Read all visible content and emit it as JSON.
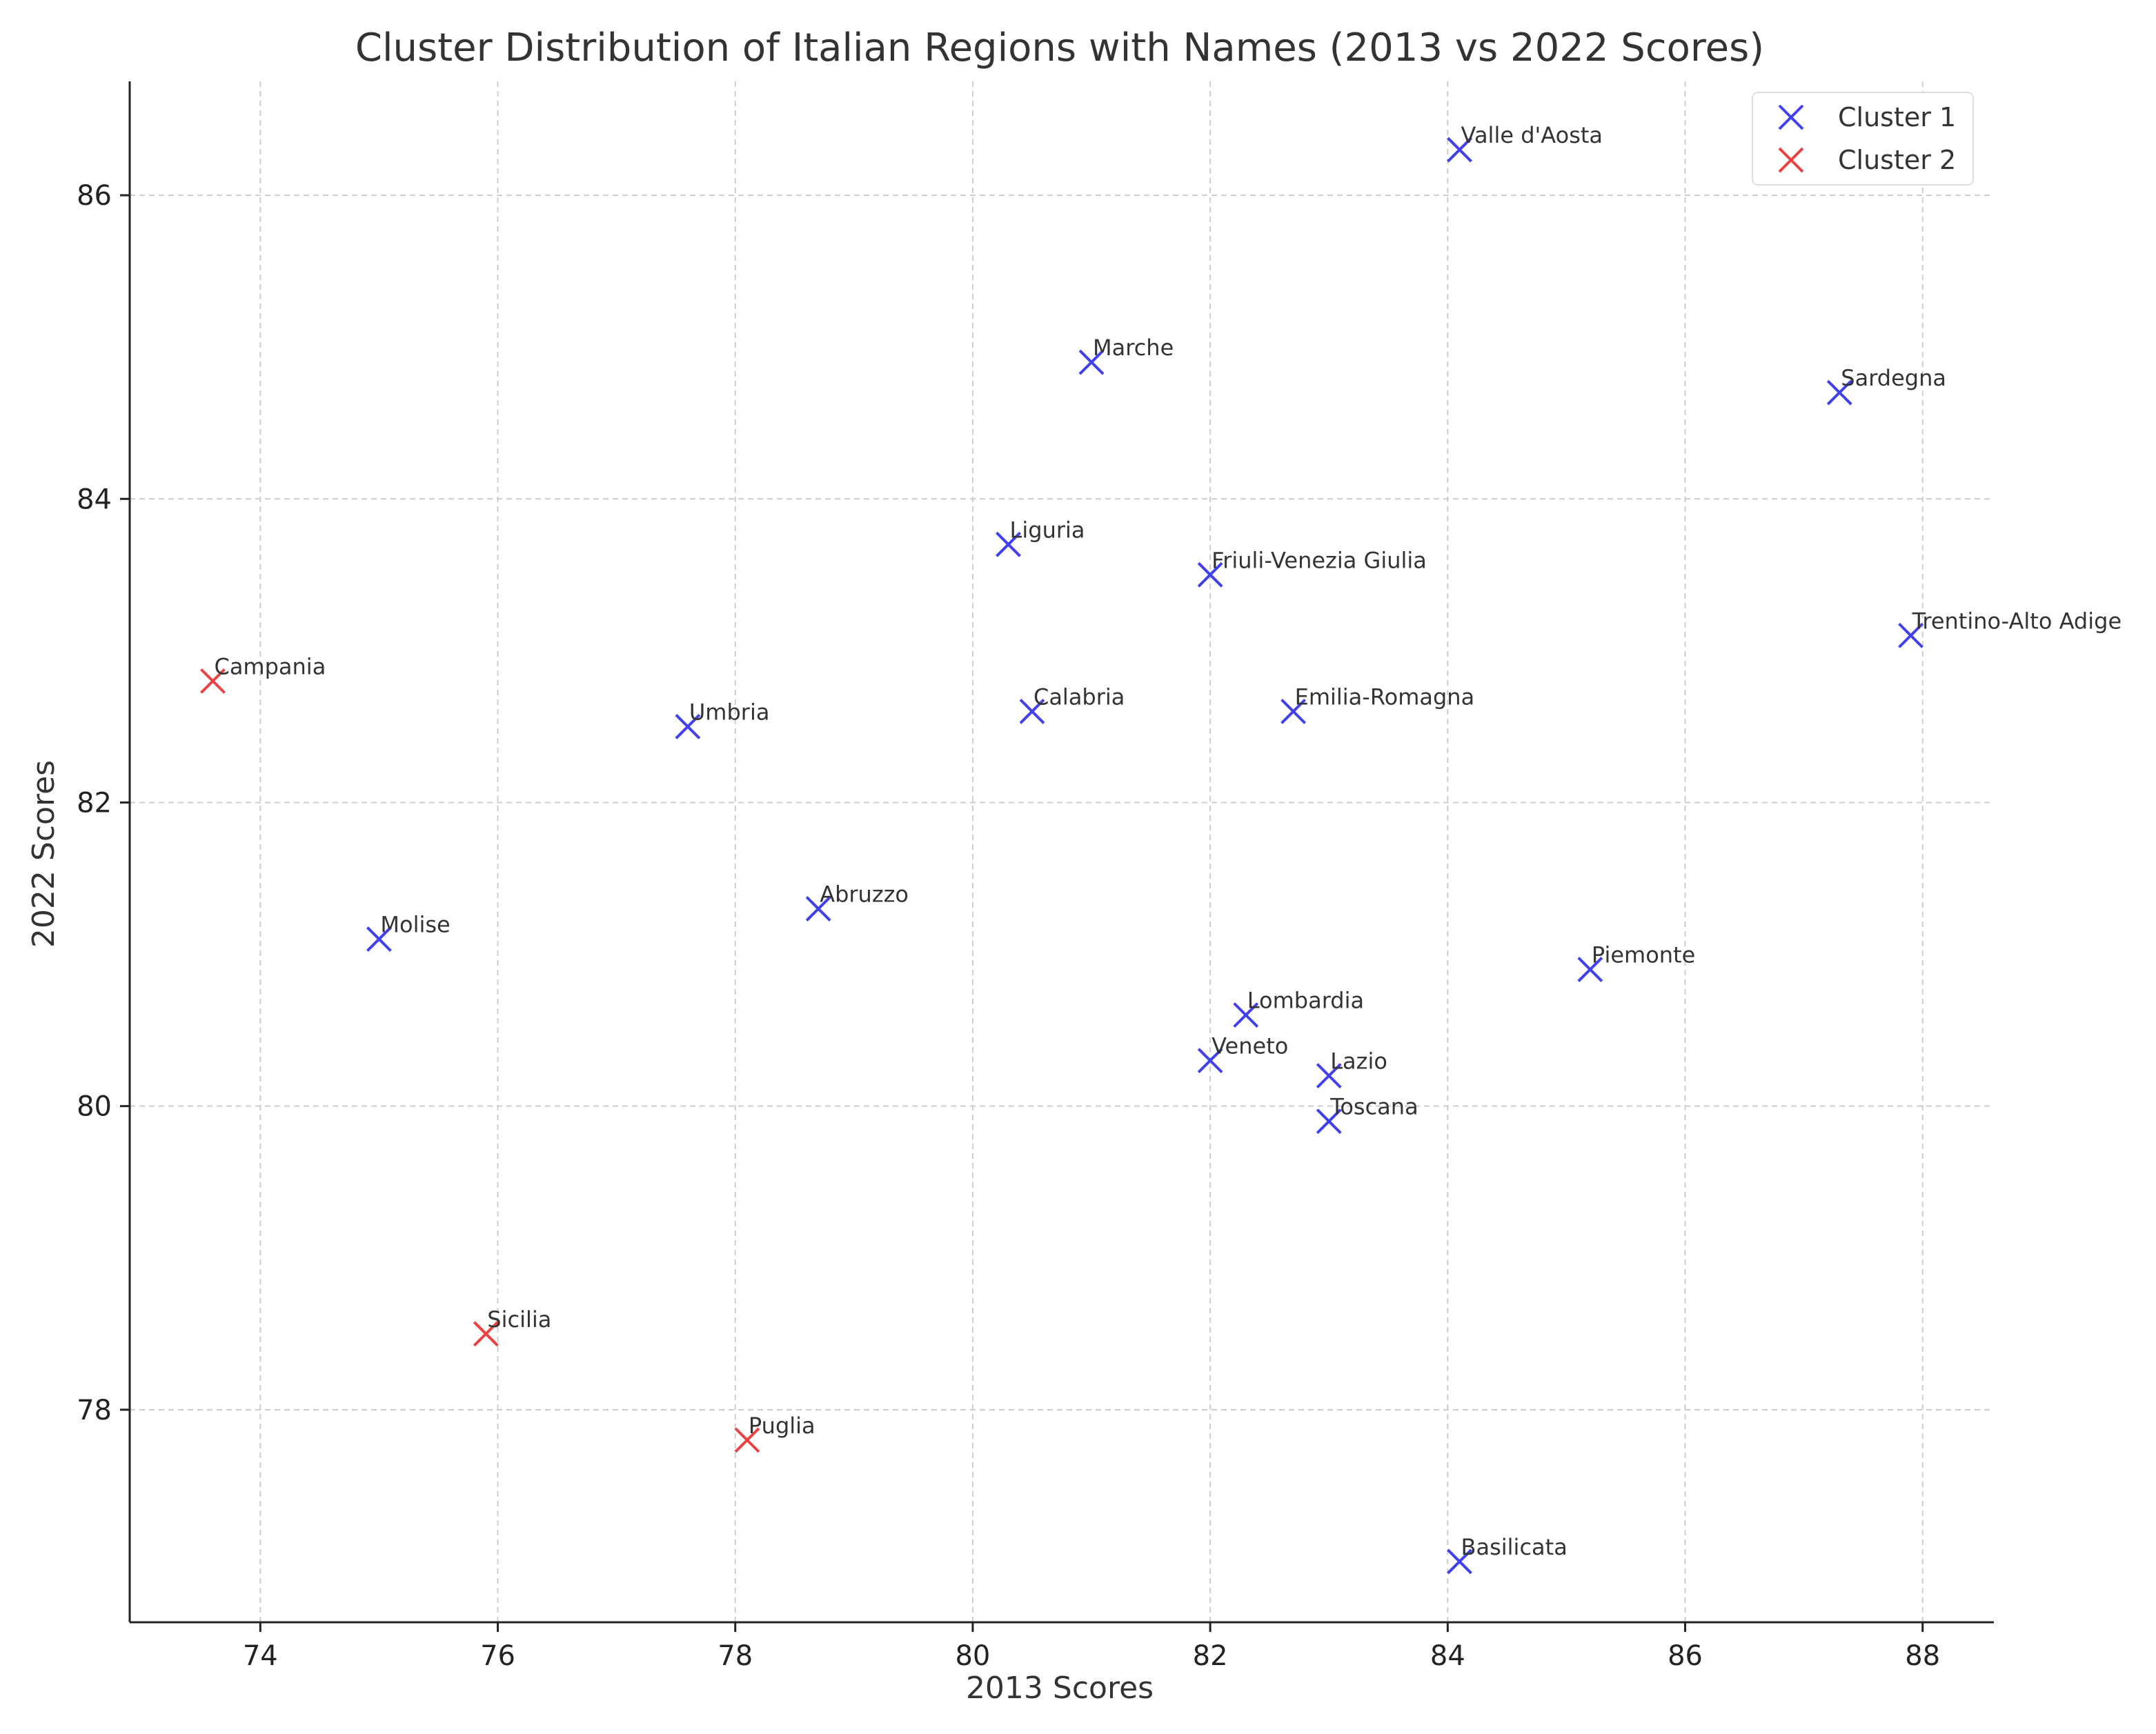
{
  "chart_data": {
    "type": "scatter",
    "title": "Cluster Distribution of Italian Regions with Names (2013 vs 2022 Scores)",
    "xlabel": "2013 Scores",
    "ylabel": "2022 Scores",
    "xlim": [
      72.9,
      88.6
    ],
    "ylim": [
      76.6,
      86.75
    ],
    "xticks": [
      74,
      76,
      78,
      80,
      82,
      84,
      86,
      88
    ],
    "yticks": [
      78,
      80,
      82,
      84,
      86
    ],
    "grid": true,
    "marker": "x",
    "legend_position": "top-right",
    "series": [
      {
        "name": "Cluster 1",
        "color": "#4040ee",
        "points": [
          {
            "label": "Valle d'Aosta",
            "x": 84.1,
            "y": 86.3
          },
          {
            "label": "Marche",
            "x": 81.0,
            "y": 84.9
          },
          {
            "label": "Sardegna",
            "x": 87.3,
            "y": 84.7
          },
          {
            "label": "Liguria",
            "x": 80.3,
            "y": 83.7
          },
          {
            "label": "Friuli-Venezia Giulia",
            "x": 82.0,
            "y": 83.5
          },
          {
            "label": "Trentino-Alto Adige",
            "x": 87.9,
            "y": 83.1
          },
          {
            "label": "Umbria",
            "x": 77.6,
            "y": 82.5
          },
          {
            "label": "Calabria",
            "x": 80.5,
            "y": 82.6
          },
          {
            "label": "Emilia-Romagna",
            "x": 82.7,
            "y": 82.6
          },
          {
            "label": "Molise",
            "x": 75.0,
            "y": 81.1
          },
          {
            "label": "Abruzzo",
            "x": 78.7,
            "y": 81.3
          },
          {
            "label": "Piemonte",
            "x": 85.2,
            "y": 80.9
          },
          {
            "label": "Lombardia",
            "x": 82.3,
            "y": 80.6
          },
          {
            "label": "Veneto",
            "x": 82.0,
            "y": 80.3
          },
          {
            "label": "Lazio",
            "x": 83.0,
            "y": 80.2
          },
          {
            "label": "Toscana",
            "x": 83.0,
            "y": 79.9
          },
          {
            "label": "Basilicata",
            "x": 84.1,
            "y": 77.0
          }
        ]
      },
      {
        "name": "Cluster 2",
        "color": "#ee4040",
        "points": [
          {
            "label": "Campania",
            "x": 73.6,
            "y": 82.8
          },
          {
            "label": "Sicilia",
            "x": 75.9,
            "y": 78.5
          },
          {
            "label": "Puglia",
            "x": 78.1,
            "y": 77.8
          }
        ]
      }
    ]
  }
}
